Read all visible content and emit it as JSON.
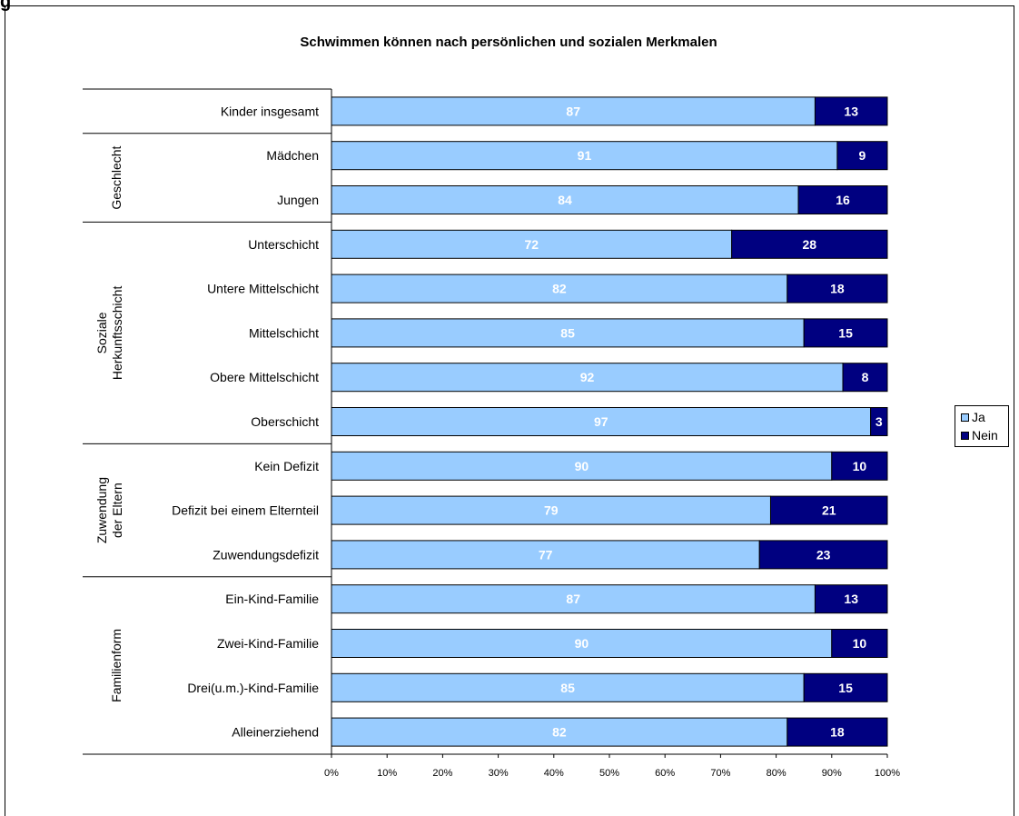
{
  "page_heading": "g",
  "chart_data": {
    "type": "bar",
    "orientation": "horizontal",
    "stacked": "percent",
    "title": "Schwimmen können nach persönlichen und sozialen Merkmalen",
    "categories": [
      "Kinder insgesamt",
      "Mädchen",
      "Jungen",
      "Unterschicht",
      "Untere Mittelschicht",
      "Mittelschicht",
      "Obere Mittelschicht",
      "Oberschicht",
      "Kein Defizit",
      "Defizit bei einem Elternteil",
      "Zuwendungsdefizit",
      "Ein-Kind-Familie",
      "Zwei-Kind-Familie",
      "Drei(u.m.)-Kind-Familie",
      "Alleinerziehend"
    ],
    "groups": [
      {
        "label": "",
        "categories": [
          "Kinder insgesamt"
        ]
      },
      {
        "label": "Geschlecht",
        "categories": [
          "Mädchen",
          "Jungen"
        ]
      },
      {
        "label": "Soziale Herkunftsschicht",
        "lines": [
          "Soziale",
          "Herkunftsschicht"
        ],
        "categories": [
          "Unterschicht",
          "Untere Mittelschicht",
          "Mittelschicht",
          "Obere Mittelschicht",
          "Oberschicht"
        ]
      },
      {
        "label": "Zuwendung der Eltern",
        "lines": [
          "Zuwendung",
          "der Eltern"
        ],
        "categories": [
          "Kein Defizit",
          "Defizit bei einem Elternteil",
          "Zuwendungsdefizit"
        ]
      },
      {
        "label": "Familienform",
        "categories": [
          "Ein-Kind-Familie",
          "Zwei-Kind-Familie",
          "Drei(u.m.)-Kind-Familie",
          "Alleinerziehend"
        ]
      }
    ],
    "series": [
      {
        "name": "Ja",
        "color": "#99ccff",
        "label_color": "#ffffff",
        "values": [
          87,
          91,
          84,
          72,
          82,
          85,
          92,
          97,
          90,
          79,
          77,
          87,
          90,
          85,
          82
        ]
      },
      {
        "name": "Nein",
        "color": "#000080",
        "label_color": "#ffffff",
        "values": [
          13,
          9,
          16,
          28,
          18,
          15,
          8,
          3,
          10,
          21,
          23,
          13,
          10,
          15,
          18
        ]
      }
    ],
    "xlim": [
      0,
      100
    ],
    "xticks": [
      "0%",
      "10%",
      "20%",
      "30%",
      "40%",
      "50%",
      "60%",
      "70%",
      "80%",
      "90%",
      "100%"
    ],
    "legend_position": "right",
    "grid": false
  }
}
